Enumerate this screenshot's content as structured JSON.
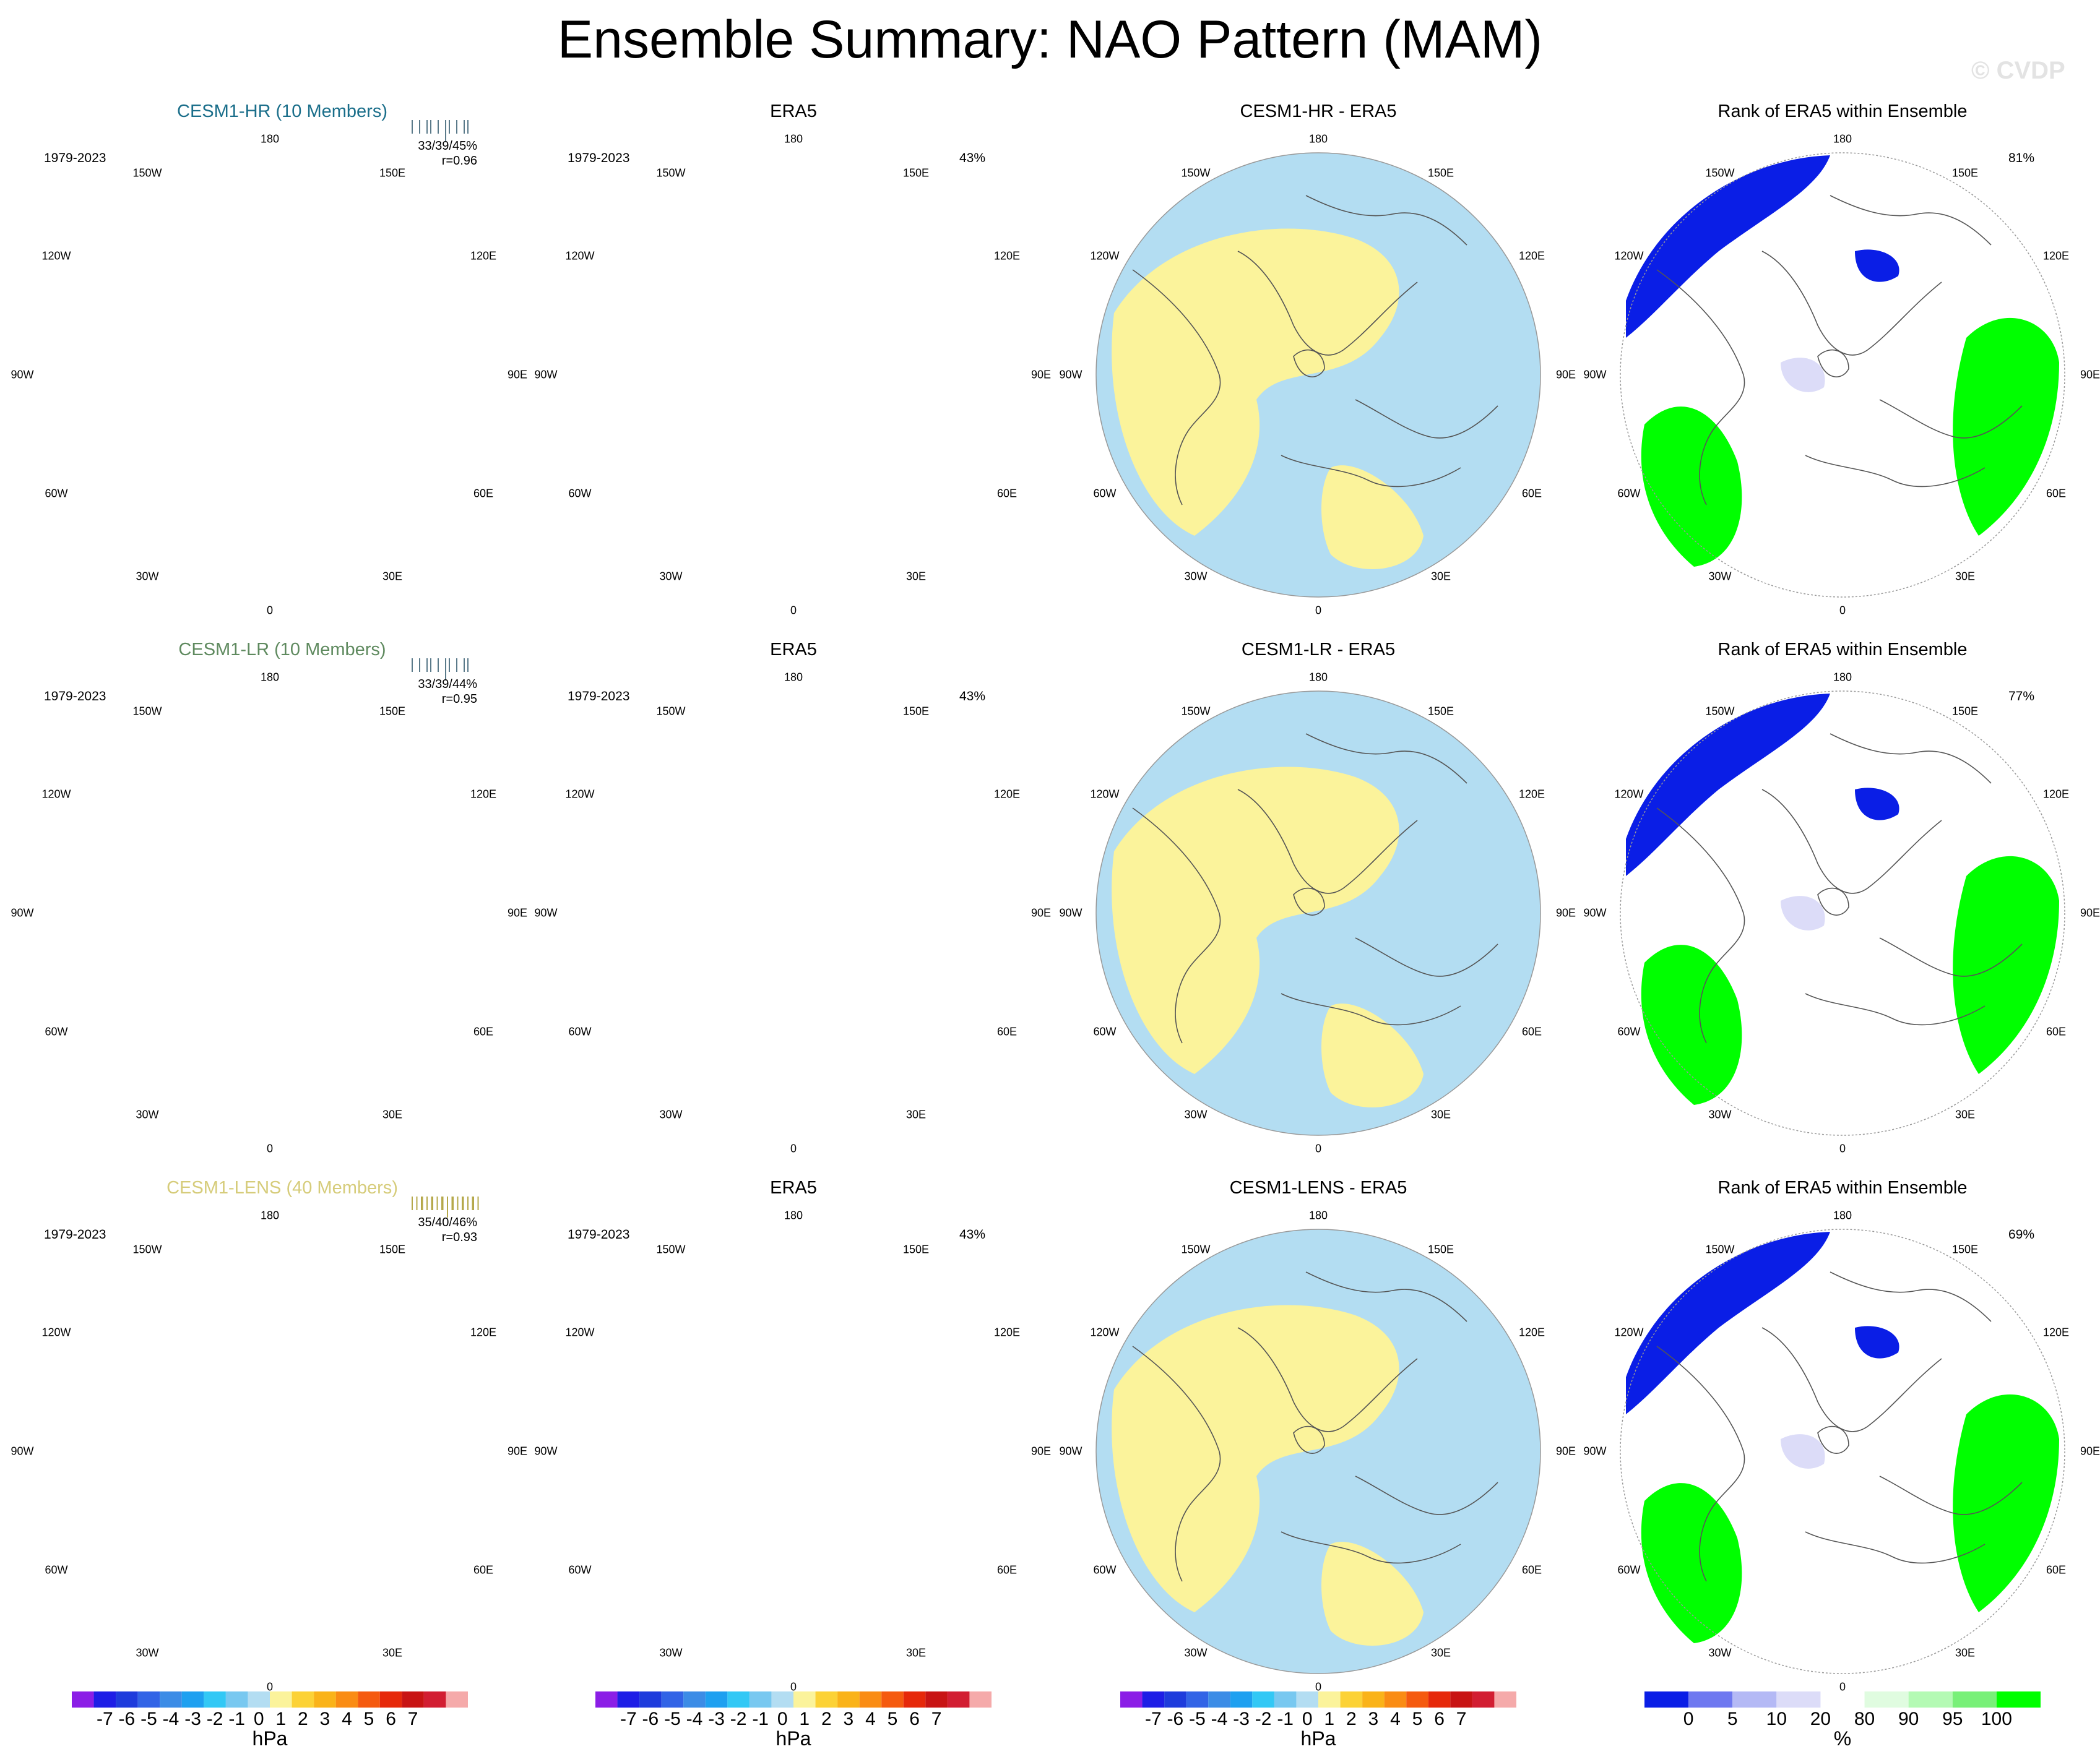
{
  "title": "Ensemble Summary: NAO Pattern (MAM)",
  "watermark": "© CVDP",
  "colors": {
    "neg_light": "#b3ddf2",
    "neg_1": "#7ccbf0",
    "neg_2": "#35b4f0",
    "neg_3": "#1e8fe6",
    "neg_4": "#3b6fe0",
    "pos_light": "#fbf39b",
    "pos_1": "#fcd236",
    "pos_2": "#fab319",
    "rank_low": "#0a1ee6",
    "rank_mid": "#9ea5f0",
    "rank_pale": "#dcdcf8",
    "rank_high": "#00ff00",
    "rank_light_green": "#d8fcd8",
    "coast": "#555555"
  },
  "lon_labels": {
    "top": "180",
    "bottom": "0",
    "w150": "150W",
    "w120": "120W",
    "w90": "90W",
    "w60": "60W",
    "w30": "30W",
    "e150": "150E",
    "e120": "120E",
    "e90": "90E",
    "e60": "60E",
    "e30": "30E"
  },
  "rows": [
    {
      "model": {
        "title": "CESM1-HR (10 Members)",
        "title_color": "#1a6e8a",
        "period": "1979-2023",
        "stats_line1": "33/39/45%",
        "stats_line2": "r=0.96"
      },
      "obs": {
        "title": "ERA5",
        "period": "1979-2023",
        "pct": "43%"
      },
      "diff": {
        "title": "CESM1-HR - ERA5"
      },
      "rank": {
        "title": "Rank of ERA5 within Ensemble",
        "pct": "81%"
      }
    },
    {
      "model": {
        "title": "CESM1-LR (10 Members)",
        "title_color": "#5f8a5f",
        "period": "1979-2023",
        "stats_line1": "33/39/44%",
        "stats_line2": "r=0.95"
      },
      "obs": {
        "title": "ERA5",
        "period": "1979-2023",
        "pct": "43%"
      },
      "diff": {
        "title": "CESM1-LR - ERA5"
      },
      "rank": {
        "title": "Rank of ERA5 within Ensemble",
        "pct": "77%"
      }
    },
    {
      "model": {
        "title": "CESM1-LENS (40 Members)",
        "title_color": "#d6cc7a",
        "period": "1979-2023",
        "stats_line1": "35/40/46%",
        "stats_line2": "r=0.93"
      },
      "obs": {
        "title": "ERA5",
        "period": "1979-2023",
        "pct": "43%"
      },
      "diff": {
        "title": "CESM1-LENS - ERA5"
      },
      "rank": {
        "title": "Rank of ERA5 within Ensemble",
        "pct": "69%"
      }
    }
  ],
  "colorbar_slp": {
    "labels": [
      "-7",
      "-6",
      "-5",
      "-4",
      "-3",
      "-2",
      "-1",
      "0",
      "1",
      "2",
      "3",
      "4",
      "5",
      "6",
      "7"
    ],
    "colors": [
      "#8b1ee6",
      "#1e1ee6",
      "#1e3cdc",
      "#3264e6",
      "#3c8ce6",
      "#1ea0f0",
      "#32c8f5",
      "#78c8f0",
      "#b3ddf2",
      "#fbf39b",
      "#fcd236",
      "#fab319",
      "#fa8c14",
      "#f55a0f",
      "#e6280a",
      "#c81414",
      "#d21e32",
      "#f5aaaa"
    ],
    "units": "hPa"
  },
  "colorbar_rank": {
    "labels": [
      "0",
      "5",
      "10",
      "20",
      "80",
      "90",
      "95",
      "100"
    ],
    "colors": [
      "#0a1ee6",
      "#6e78f0",
      "#b4b9f5",
      "#dcdcf8",
      "#ffffff",
      "#e0fce0",
      "#b4fab4",
      "#78f078",
      "#00ff00"
    ],
    "units": "%"
  }
}
